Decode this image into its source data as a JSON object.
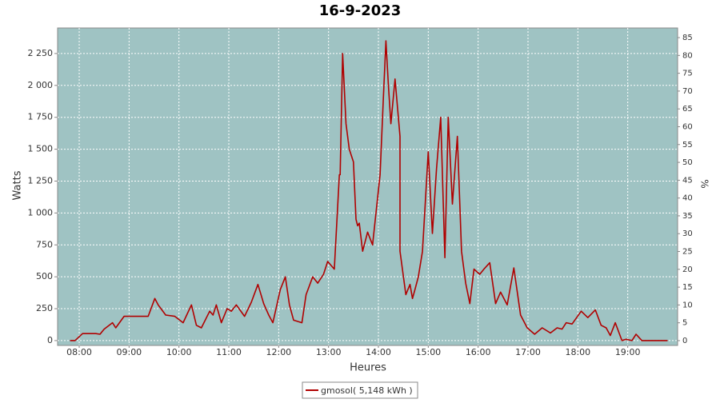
{
  "chart_data": {
    "type": "line",
    "title": "16-9-2023",
    "xlabel": "Heures",
    "ylabel": "Watts",
    "y2label": "%",
    "x": [
      469,
      475,
      484,
      490,
      495,
      500,
      505,
      510,
      520,
      524,
      534,
      540,
      546,
      563,
      571,
      575,
      584,
      595,
      605,
      615,
      621,
      627,
      637,
      641,
      645,
      651,
      658,
      663,
      669,
      679,
      687,
      695,
      702,
      708,
      713,
      722,
      728,
      733,
      738,
      748,
      753,
      761,
      767,
      774,
      779,
      787,
      793,
      794,
      797,
      801,
      805,
      810,
      813,
      815,
      817,
      821,
      827,
      833,
      842,
      846,
      849,
      852,
      855,
      860,
      866,
      866,
      873,
      878,
      881,
      884,
      888,
      893,
      900,
      905,
      910,
      915,
      920,
      924,
      929,
      935,
      940,
      945,
      950,
      955,
      962,
      967,
      974,
      981,
      987,
      995,
      1003,
      1011,
      1019,
      1028,
      1037,
      1047,
      1055,
      1061,
      1066,
      1073,
      1084,
      1092,
      1101,
      1108,
      1114,
      1119,
      1125,
      1133,
      1138,
      1145,
      1150,
      1157,
      1167,
      1174,
      1181,
      1188
    ],
    "series": [
      {
        "name": "gmosol( 5,148 kWh )",
        "color": "#b00000",
        "values": [
          0,
          0,
          55,
          55,
          55,
          55,
          50,
          90,
          140,
          100,
          190,
          190,
          190,
          190,
          330,
          280,
          200,
          190,
          140,
          280,
          120,
          100,
          230,
          200,
          280,
          140,
          250,
          230,
          280,
          190,
          300,
          440,
          290,
          200,
          140,
          400,
          500,
          280,
          160,
          140,
          360,
          500,
          450,
          520,
          620,
          560,
          1300,
          1300,
          2250,
          1700,
          1500,
          1400,
          950,
          900,
          920,
          700,
          850,
          750,
          1300,
          1900,
          2350,
          2000,
          1700,
          2050,
          1600,
          700,
          360,
          440,
          330,
          400,
          500,
          700,
          1480,
          840,
          1350,
          1750,
          650,
          1750,
          1070,
          1600,
          700,
          450,
          290,
          560,
          520,
          560,
          610,
          290,
          380,
          280,
          570,
          200,
          100,
          50,
          100,
          60,
          100,
          90,
          140,
          130,
          230,
          180,
          240,
          120,
          100,
          40,
          140,
          0,
          10,
          0,
          50,
          0,
          0,
          0,
          0,
          0
        ]
      }
    ],
    "xlim": [
      454,
      1200
    ],
    "xticks": [
      {
        "value": 480,
        "label": "08:00"
      },
      {
        "value": 540,
        "label": "09:00"
      },
      {
        "value": 600,
        "label": "10:00"
      },
      {
        "value": 660,
        "label": "11:00"
      },
      {
        "value": 720,
        "label": "12:00"
      },
      {
        "value": 780,
        "label": "13:00"
      },
      {
        "value": 840,
        "label": "14:00"
      },
      {
        "value": 900,
        "label": "15:00"
      },
      {
        "value": 960,
        "label": "16:00"
      },
      {
        "value": 1020,
        "label": "17:00"
      },
      {
        "value": 1080,
        "label": "18:00"
      },
      {
        "value": 1140,
        "label": "19:00"
      }
    ],
    "ylim": [
      -38,
      2450
    ],
    "yticks": [
      0,
      250,
      500,
      750,
      {
        "value": 1000,
        "label": "1 000"
      },
      {
        "value": 1250,
        "label": "1 250"
      },
      {
        "value": 1500,
        "label": "1 500"
      },
      {
        "value": 1750,
        "label": "1 750"
      },
      {
        "value": 2000,
        "label": "2 000"
      },
      {
        "value": 2250,
        "label": "2 250"
      }
    ],
    "y2lim": [
      -1.35,
      87.7
    ],
    "y2ticks": [
      0,
      5,
      10,
      15,
      20,
      25,
      30,
      35,
      40,
      45,
      50,
      55,
      60,
      65,
      70,
      75,
      80,
      85
    ],
    "grid": true,
    "background": "#9fc3c3"
  }
}
